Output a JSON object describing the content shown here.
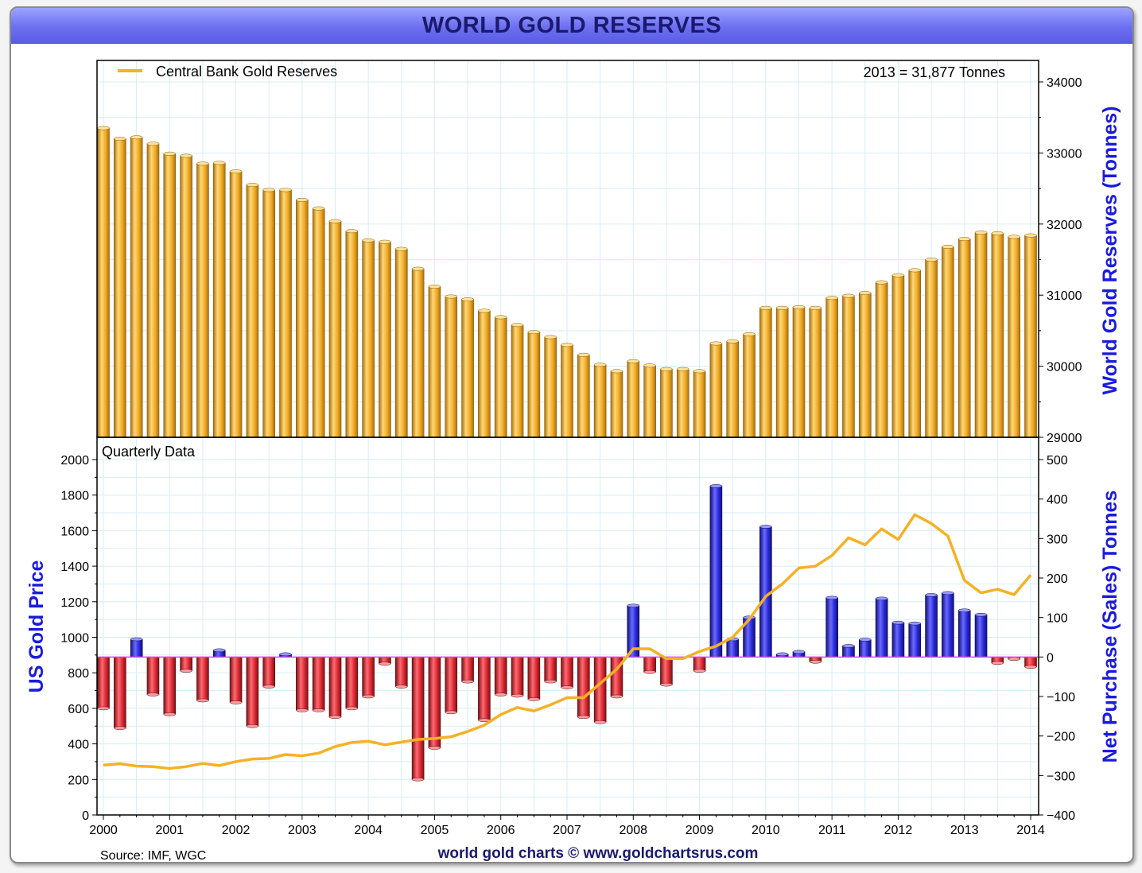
{
  "title": "WORLD GOLD RESERVES",
  "chart_data": [
    {
      "type": "bar",
      "legend": [
        {
          "label": "Central Bank Gold Reserves",
          "color": "#f5b125",
          "position": "top-left"
        }
      ],
      "annotation": "2013 = 31,877 Tonnes",
      "ylabel": "World Gold Reserves (Tonnes)",
      "ylim": [
        29000,
        34000
      ],
      "yticks": [
        "34000",
        "33000",
        "32000",
        "31000",
        "30000",
        "29000"
      ],
      "bar_color": "#f5b125",
      "x": [
        2000.0,
        2000.25,
        2000.5,
        2000.75,
        2001.0,
        2001.25,
        2001.5,
        2001.75,
        2002.0,
        2002.25,
        2002.5,
        2002.75,
        2003.0,
        2003.25,
        2003.5,
        2003.75,
        2004.0,
        2004.25,
        2004.5,
        2004.75,
        2005.0,
        2005.25,
        2005.5,
        2005.75,
        2006.0,
        2006.25,
        2006.5,
        2006.75,
        2007.0,
        2007.25,
        2007.5,
        2007.75,
        2008.0,
        2008.25,
        2008.5,
        2008.75,
        2009.0,
        2009.25,
        2009.5,
        2009.75,
        2010.0,
        2010.25,
        2010.5,
        2010.75,
        2011.0,
        2011.25,
        2011.5,
        2011.75,
        2012.0,
        2012.25,
        2012.5,
        2012.75,
        2013.0,
        2013.25,
        2013.5,
        2013.75,
        2014.0
      ],
      "values": [
        33350,
        33200,
        33220,
        33130,
        32990,
        32960,
        32850,
        32860,
        32740,
        32550,
        32480,
        32480,
        32340,
        32220,
        32040,
        31900,
        31770,
        31750,
        31650,
        31370,
        31120,
        30980,
        30940,
        30780,
        30690,
        30580,
        30480,
        30410,
        30300,
        30160,
        30020,
        29930,
        30070,
        30010,
        29960,
        29960,
        29930,
        30320,
        30350,
        30450,
        30820,
        30820,
        30830,
        30820,
        30960,
        30990,
        31030,
        31180,
        31280,
        31350,
        31500,
        31680,
        31790,
        31880,
        31870,
        31820,
        31840
      ]
    },
    {
      "type": "bar",
      "title": "Quarterly Data",
      "ylabel": "Net Purchase (Sales) Tonnes",
      "ylim": [
        -400,
        500
      ],
      "yticks": [
        "500",
        "400",
        "300",
        "200",
        "100",
        "0",
        "−100",
        "−200",
        "−300",
        "−400"
      ],
      "positive_color": "#2b2bdd",
      "negative_color": "#dd2b35",
      "zero_line_color": "#e040e0",
      "x": [
        2000.0,
        2000.25,
        2000.5,
        2000.75,
        2001.0,
        2001.25,
        2001.5,
        2001.75,
        2002.0,
        2002.25,
        2002.5,
        2002.75,
        2003.0,
        2003.25,
        2003.5,
        2003.75,
        2004.0,
        2004.25,
        2004.5,
        2004.75,
        2005.0,
        2005.25,
        2005.5,
        2005.75,
        2006.0,
        2006.25,
        2006.5,
        2006.75,
        2007.0,
        2007.25,
        2007.5,
        2007.75,
        2008.0,
        2008.25,
        2008.5,
        2008.75,
        2009.0,
        2009.25,
        2009.5,
        2009.75,
        2010.0,
        2010.25,
        2010.5,
        2010.75,
        2011.0,
        2011.25,
        2011.5,
        2011.75,
        2012.0,
        2012.25,
        2012.5,
        2012.75,
        2013.0,
        2013.25,
        2013.5,
        2013.75,
        2014.0
      ],
      "values": [
        -130,
        -180,
        45,
        -95,
        -145,
        -35,
        -110,
        17,
        -115,
        -175,
        -75,
        7,
        -135,
        -135,
        -152,
        -130,
        -100,
        -17,
        -75,
        -310,
        -230,
        -140,
        -62,
        -160,
        -95,
        -98,
        -107,
        -62,
        -77,
        -152,
        -165,
        -100,
        130,
        -38,
        -70,
        0,
        -35,
        433,
        45,
        100,
        330,
        7,
        13,
        -12,
        150,
        28,
        44,
        148,
        87,
        85,
        157,
        162,
        118,
        107,
        -15,
        -5,
        -25
      ]
    },
    {
      "type": "line",
      "series": [
        {
          "name": "",
          "color": "#f5b125"
        }
      ],
      "ylabel": "US Gold Price",
      "ylim": [
        0,
        2000
      ],
      "yticks": [
        "2000",
        "1800",
        "1600",
        "1400",
        "1200",
        "1000",
        "800",
        "600",
        "400",
        "200",
        "0"
      ],
      "xticks": [
        "2000",
        "2001",
        "2002",
        "2003",
        "2004",
        "2005",
        "2006",
        "2007",
        "2008",
        "2009",
        "2010",
        "2011",
        "2012",
        "2013",
        "2014"
      ],
      "x": [
        2000.0,
        2000.25,
        2000.5,
        2000.75,
        2001.0,
        2001.25,
        2001.5,
        2001.75,
        2002.0,
        2002.25,
        2002.5,
        2002.75,
        2003.0,
        2003.25,
        2003.5,
        2003.75,
        2004.0,
        2004.25,
        2004.5,
        2004.75,
        2005.0,
        2005.25,
        2005.5,
        2005.75,
        2006.0,
        2006.25,
        2006.5,
        2006.75,
        2007.0,
        2007.25,
        2007.5,
        2007.75,
        2008.0,
        2008.25,
        2008.5,
        2008.75,
        2009.0,
        2009.25,
        2009.5,
        2009.75,
        2010.0,
        2010.25,
        2010.5,
        2010.75,
        2011.0,
        2011.25,
        2011.5,
        2011.75,
        2012.0,
        2012.25,
        2012.5,
        2012.75,
        2013.0,
        2013.25,
        2013.5,
        2013.75,
        2014.0
      ],
      "values": [
        280,
        288,
        275,
        272,
        262,
        272,
        290,
        278,
        300,
        315,
        318,
        340,
        333,
        348,
        385,
        408,
        415,
        395,
        410,
        425,
        430,
        440,
        470,
        505,
        565,
        605,
        585,
        620,
        660,
        660,
        740,
        820,
        935,
        935,
        880,
        880,
        920,
        950,
        1000,
        1100,
        1230,
        1300,
        1390,
        1400,
        1460,
        1560,
        1520,
        1610,
        1550,
        1690,
        1640,
        1570,
        1320,
        1250,
        1270,
        1240,
        1350
      ]
    }
  ],
  "footer": {
    "source": "Source: IMF, WGC",
    "credit": "world gold charts © www.goldchartsrus.com"
  }
}
